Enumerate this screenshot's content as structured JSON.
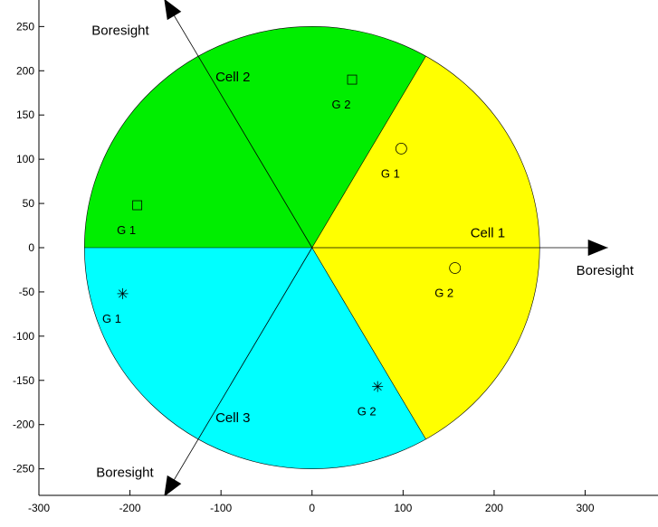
{
  "chart_data": {
    "type": "scatter",
    "title": "",
    "xlabel": "",
    "ylabel": "",
    "xlim": [
      -300,
      380
    ],
    "ylim": [
      -280,
      280
    ],
    "grid": false,
    "xticks": [
      -300,
      -200,
      -100,
      0,
      100,
      200,
      300
    ],
    "yticks": [
      -250,
      -200,
      -150,
      -100,
      -50,
      0,
      50,
      100,
      150,
      200,
      250
    ],
    "circle_radius": 250,
    "sectors": [
      {
        "cell": "Cell 1",
        "from_deg": -60,
        "to_deg": 60,
        "color": "#ffff00"
      },
      {
        "cell": "Cell 2",
        "from_deg": 60,
        "to_deg": 180,
        "color": "#00ee00"
      },
      {
        "cell": "Cell 3",
        "from_deg": 180,
        "to_deg": 300,
        "color": "#00ffff"
      }
    ],
    "boresights": [
      {
        "label": "Boresight",
        "cell": "Cell 1",
        "angle_deg": 0,
        "length": 325
      },
      {
        "label": "Boresight",
        "cell": "Cell 2",
        "angle_deg": 120,
        "length": 325
      },
      {
        "label": "Boresight",
        "cell": "Cell 3",
        "angle_deg": 240,
        "length": 325
      }
    ],
    "cell_labels": [
      {
        "text": "Cell 1",
        "x": 193,
        "y": 12
      },
      {
        "text": "Cell 2",
        "x": -87,
        "y": 188
      },
      {
        "text": "Cell 3",
        "x": -87,
        "y": -197
      }
    ],
    "points": [
      {
        "label": "G 1",
        "cell": "Cell 1",
        "marker": "circle",
        "x": 98,
        "y": 112
      },
      {
        "label": "G 2",
        "cell": "Cell 1",
        "marker": "circle",
        "x": 157,
        "y": -23
      },
      {
        "label": "G 1",
        "cell": "Cell 2",
        "marker": "square",
        "x": -192,
        "y": 48
      },
      {
        "label": "G 2",
        "cell": "Cell 2",
        "marker": "square",
        "x": 44,
        "y": 190
      },
      {
        "label": "G 1",
        "cell": "Cell 3",
        "marker": "star",
        "x": -208,
        "y": -52
      },
      {
        "label": "G 2",
        "cell": "Cell 3",
        "marker": "star",
        "x": 72,
        "y": -157
      }
    ]
  }
}
